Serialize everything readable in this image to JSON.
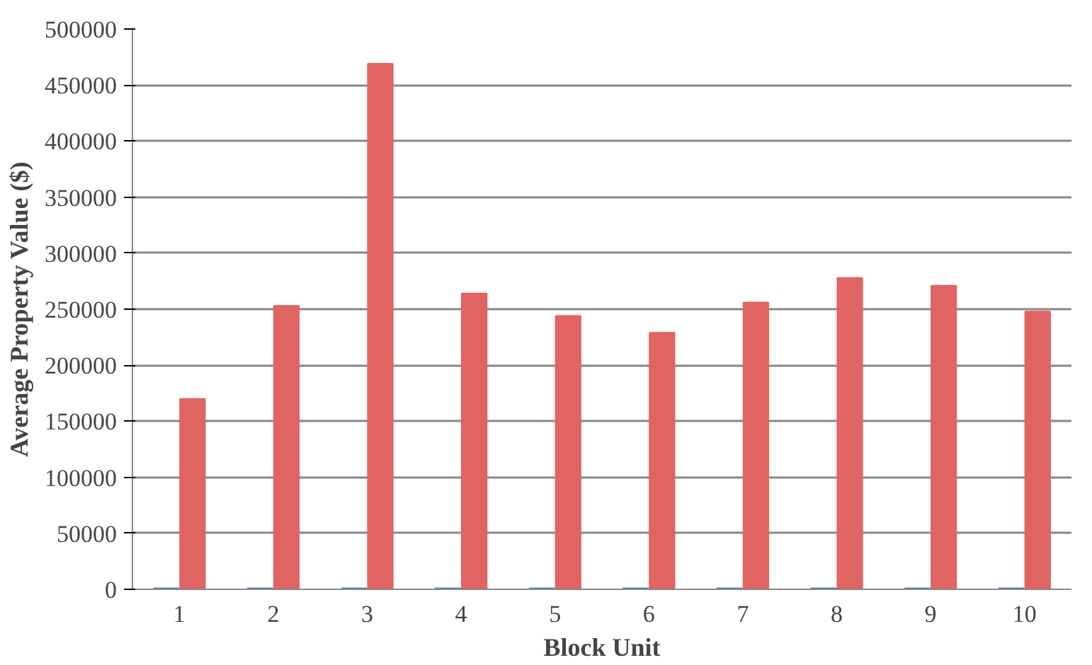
{
  "chart_data": {
    "type": "bar",
    "xlabel": "Block Unit",
    "ylabel": "Average Property Value ($)",
    "categories": [
      "1",
      "2",
      "3",
      "4",
      "5",
      "6",
      "7",
      "8",
      "9",
      "10"
    ],
    "series": [
      {
        "color": "#4f81bd",
        "values": [
          1000,
          1000,
          1000,
          1000,
          1000,
          1000,
          1000,
          1000,
          1000,
          1000
        ]
      },
      {
        "color": "#e06462",
        "values": [
          170000,
          253000,
          469000,
          264000,
          244000,
          229000,
          256000,
          278000,
          271000,
          248000
        ]
      }
    ],
    "ylim": [
      0,
      500000
    ],
    "yticks": [
      0,
      50000,
      100000,
      150000,
      200000,
      250000,
      300000,
      350000,
      400000,
      450000,
      500000
    ],
    "grid": "y"
  }
}
